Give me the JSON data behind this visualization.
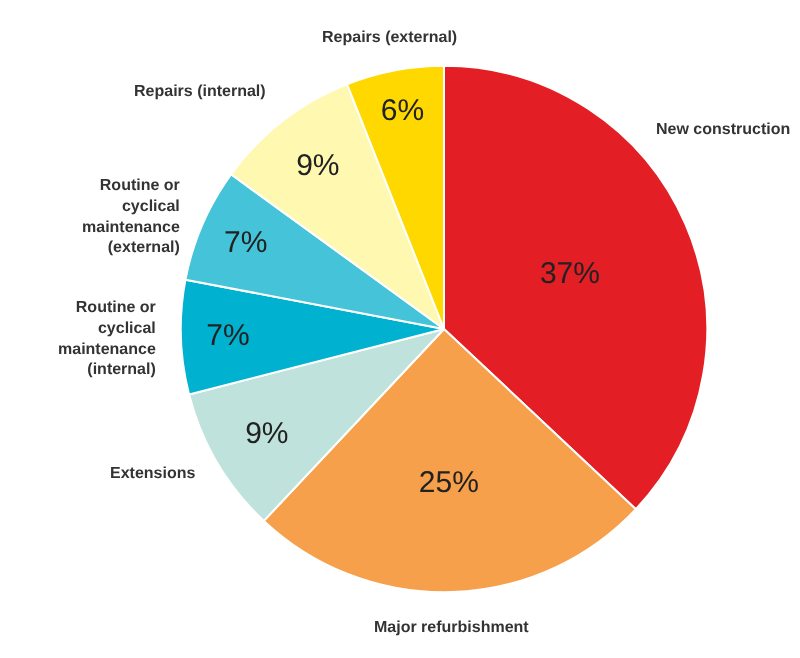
{
  "chart_data": {
    "type": "pie",
    "categories": [
      "New construction",
      "Major refurbishment",
      "Extensions",
      "Routine or\ncyclical\nmaintenance\n(internal)",
      "Routine or\ncyclical\nmaintenance\n(external)",
      "Repairs (internal)",
      "Repairs (external)"
    ],
    "values": [
      37,
      25,
      9,
      7,
      7,
      9,
      6
    ],
    "value_labels": [
      "37%",
      "25%",
      "9%",
      "7%",
      "7%",
      "9%",
      "6%"
    ],
    "colors": [
      "#e31e24",
      "#f7a04b",
      "#bfe3dc",
      "#00b2d0",
      "#45c3d8",
      "#fff8b0",
      "#ffd800"
    ],
    "legend": false
  }
}
